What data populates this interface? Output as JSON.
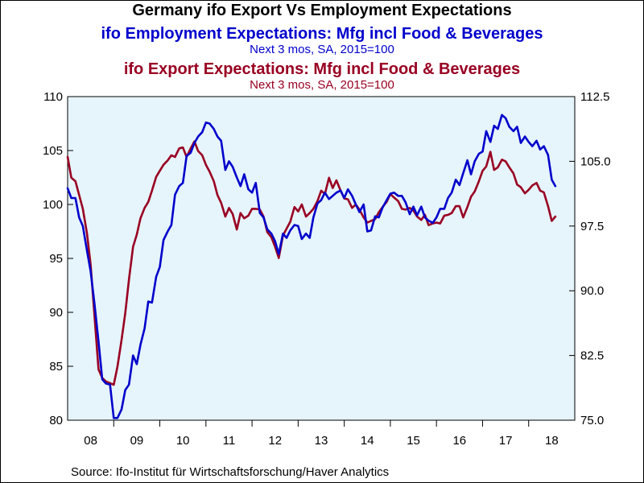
{
  "chart_data": {
    "type": "line",
    "title": "Germany ifo Export Vs Employment Expectations",
    "source": "Source:  Ifo-Institut für Wirtschaftsforschung/Haver Analytics",
    "x_start": 2008.0,
    "x_end": 2019.0,
    "xticks": [
      "08",
      "09",
      "10",
      "11",
      "12",
      "13",
      "14",
      "15",
      "16",
      "17",
      "18"
    ],
    "y_left": {
      "lim": [
        80,
        110
      ],
      "ticks": [
        "80",
        "85",
        "90",
        "95",
        "100",
        "105",
        "110"
      ]
    },
    "y_right": {
      "lim": [
        75.0,
        112.5
      ],
      "ticks": [
        "75.0",
        "82.5",
        "90.0",
        "97.5",
        "105.0",
        "112.5"
      ]
    },
    "series": [
      {
        "name": "ifo Employment Expectations: Mfg incl Food & Beverages",
        "subtitle": "Next 3 mos, SA, 2015=100",
        "axis": "left",
        "color": "#0000cc",
        "points": [
          [
            2008.0,
            101.5
          ],
          [
            2008.08,
            100.6
          ],
          [
            2008.17,
            100.6
          ],
          [
            2008.25,
            98.8
          ],
          [
            2008.33,
            98.0
          ],
          [
            2008.42,
            95.7
          ],
          [
            2008.5,
            93.8
          ],
          [
            2008.58,
            90.9
          ],
          [
            2008.67,
            87.3
          ],
          [
            2008.75,
            83.8
          ],
          [
            2008.83,
            83.4
          ],
          [
            2008.92,
            83.3
          ],
          [
            2009.0,
            80.2
          ],
          [
            2009.08,
            80.2
          ],
          [
            2009.17,
            81.0
          ],
          [
            2009.25,
            82.8
          ],
          [
            2009.33,
            83.3
          ],
          [
            2009.42,
            86.0
          ],
          [
            2009.5,
            85.2
          ],
          [
            2009.58,
            87.0
          ],
          [
            2009.67,
            88.5
          ],
          [
            2009.75,
            91.0
          ],
          [
            2009.83,
            90.9
          ],
          [
            2009.92,
            93.3
          ],
          [
            2010.0,
            94.2
          ],
          [
            2010.08,
            96.7
          ],
          [
            2010.17,
            97.5
          ],
          [
            2010.25,
            98.1
          ],
          [
            2010.33,
            100.9
          ],
          [
            2010.42,
            101.7
          ],
          [
            2010.5,
            102.0
          ],
          [
            2010.58,
            104.5
          ],
          [
            2010.67,
            104.8
          ],
          [
            2010.75,
            105.7
          ],
          [
            2010.83,
            106.3
          ],
          [
            2010.92,
            106.7
          ],
          [
            2011.0,
            107.6
          ],
          [
            2011.08,
            107.5
          ],
          [
            2011.17,
            107.0
          ],
          [
            2011.25,
            106.3
          ],
          [
            2011.33,
            105.9
          ],
          [
            2011.42,
            103.2
          ],
          [
            2011.5,
            104.0
          ],
          [
            2011.58,
            103.5
          ],
          [
            2011.67,
            102.5
          ],
          [
            2011.75,
            101.7
          ],
          [
            2011.83,
            102.8
          ],
          [
            2011.92,
            101.4
          ],
          [
            2012.0,
            101.1
          ],
          [
            2012.08,
            102.0
          ],
          [
            2012.17,
            99.2
          ],
          [
            2012.25,
            98.8
          ],
          [
            2012.33,
            97.7
          ],
          [
            2012.42,
            97.3
          ],
          [
            2012.5,
            96.6
          ],
          [
            2012.58,
            95.4
          ],
          [
            2012.67,
            97.3
          ],
          [
            2012.75,
            96.9
          ],
          [
            2012.83,
            97.6
          ],
          [
            2012.92,
            98.1
          ],
          [
            2013.0,
            98.0
          ],
          [
            2013.08,
            96.8
          ],
          [
            2013.17,
            97.3
          ],
          [
            2013.25,
            96.9
          ],
          [
            2013.33,
            98.8
          ],
          [
            2013.42,
            100.1
          ],
          [
            2013.5,
            100.4
          ],
          [
            2013.58,
            101.1
          ],
          [
            2013.67,
            100.5
          ],
          [
            2013.75,
            100.8
          ],
          [
            2013.83,
            101.1
          ],
          [
            2013.92,
            101.3
          ],
          [
            2014.0,
            100.6
          ],
          [
            2014.08,
            101.4
          ],
          [
            2014.17,
            100.8
          ],
          [
            2014.25,
            100.0
          ],
          [
            2014.33,
            99.3
          ],
          [
            2014.42,
            100.0
          ],
          [
            2014.5,
            97.5
          ],
          [
            2014.58,
            97.6
          ],
          [
            2014.67,
            98.9
          ],
          [
            2014.75,
            98.8
          ],
          [
            2014.83,
            99.7
          ],
          [
            2014.92,
            100.4
          ],
          [
            2015.0,
            101.0
          ],
          [
            2015.08,
            101.1
          ],
          [
            2015.17,
            100.8
          ],
          [
            2015.25,
            100.8
          ],
          [
            2015.33,
            100.2
          ],
          [
            2015.42,
            99.1
          ],
          [
            2015.5,
            99.8
          ],
          [
            2015.58,
            99.0
          ],
          [
            2015.67,
            99.8
          ],
          [
            2015.75,
            98.8
          ],
          [
            2015.83,
            98.5
          ],
          [
            2015.92,
            98.3
          ],
          [
            2016.0,
            98.8
          ],
          [
            2016.08,
            99.6
          ],
          [
            2016.17,
            99.6
          ],
          [
            2016.25,
            100.6
          ],
          [
            2016.33,
            101.1
          ],
          [
            2016.42,
            102.3
          ],
          [
            2016.5,
            101.8
          ],
          [
            2016.58,
            102.9
          ],
          [
            2016.67,
            104.1
          ],
          [
            2016.75,
            102.8
          ],
          [
            2016.83,
            104.0
          ],
          [
            2016.92,
            104.7
          ],
          [
            2017.0,
            104.9
          ],
          [
            2017.08,
            106.8
          ],
          [
            2017.17,
            105.8
          ],
          [
            2017.25,
            107.3
          ],
          [
            2017.33,
            107.0
          ],
          [
            2017.42,
            108.3
          ],
          [
            2017.5,
            108.0
          ],
          [
            2017.58,
            107.2
          ],
          [
            2017.67,
            106.8
          ],
          [
            2017.75,
            107.2
          ],
          [
            2017.83,
            105.7
          ],
          [
            2017.92,
            106.3
          ],
          [
            2018.0,
            105.8
          ],
          [
            2018.08,
            105.4
          ],
          [
            2018.17,
            105.9
          ],
          [
            2018.25,
            105.1
          ],
          [
            2018.33,
            105.4
          ],
          [
            2018.42,
            104.6
          ],
          [
            2018.5,
            102.3
          ],
          [
            2018.58,
            101.7
          ]
        ]
      },
      {
        "name": "ifo Export Expectations: Mfg incl Food & Beverages",
        "subtitle": "Next 3 mos, SA, 2015=100",
        "axis": "right",
        "color": "#990022",
        "points": [
          [
            2008.0,
            105.5
          ],
          [
            2008.08,
            103.1
          ],
          [
            2008.17,
            102.7
          ],
          [
            2008.25,
            101.1
          ],
          [
            2008.33,
            99.5
          ],
          [
            2008.42,
            96.6
          ],
          [
            2008.5,
            93.0
          ],
          [
            2008.58,
            87.3
          ],
          [
            2008.67,
            80.9
          ],
          [
            2008.75,
            79.9
          ],
          [
            2008.83,
            79.5
          ],
          [
            2008.92,
            79.3
          ],
          [
            2009.0,
            79.1
          ],
          [
            2009.08,
            81.2
          ],
          [
            2009.17,
            84.3
          ],
          [
            2009.25,
            87.4
          ],
          [
            2009.33,
            91.3
          ],
          [
            2009.42,
            95.1
          ],
          [
            2009.5,
            96.5
          ],
          [
            2009.58,
            98.4
          ],
          [
            2009.67,
            99.6
          ],
          [
            2009.75,
            100.3
          ],
          [
            2009.83,
            101.6
          ],
          [
            2009.92,
            103.2
          ],
          [
            2010.0,
            103.9
          ],
          [
            2010.08,
            104.6
          ],
          [
            2010.17,
            105.1
          ],
          [
            2010.25,
            105.7
          ],
          [
            2010.33,
            105.5
          ],
          [
            2010.42,
            106.5
          ],
          [
            2010.5,
            106.6
          ],
          [
            2010.58,
            105.5
          ],
          [
            2010.67,
            106.5
          ],
          [
            2010.75,
            107.3
          ],
          [
            2010.83,
            106.2
          ],
          [
            2010.92,
            105.7
          ],
          [
            2011.0,
            104.6
          ],
          [
            2011.08,
            103.8
          ],
          [
            2011.17,
            102.7
          ],
          [
            2011.25,
            101.1
          ],
          [
            2011.33,
            100.2
          ],
          [
            2011.42,
            98.6
          ],
          [
            2011.5,
            99.6
          ],
          [
            2011.58,
            98.9
          ],
          [
            2011.67,
            97.1
          ],
          [
            2011.75,
            99.0
          ],
          [
            2011.83,
            98.4
          ],
          [
            2011.92,
            98.7
          ],
          [
            2012.0,
            99.5
          ],
          [
            2012.08,
            99.5
          ],
          [
            2012.17,
            99.4
          ],
          [
            2012.25,
            98.6
          ],
          [
            2012.33,
            96.8
          ],
          [
            2012.42,
            96.2
          ],
          [
            2012.5,
            95.1
          ],
          [
            2012.58,
            93.8
          ],
          [
            2012.67,
            96.4
          ],
          [
            2012.75,
            97.2
          ],
          [
            2012.83,
            98.0
          ],
          [
            2012.92,
            99.7
          ],
          [
            2013.0,
            99.2
          ],
          [
            2013.08,
            100.0
          ],
          [
            2013.17,
            98.6
          ],
          [
            2013.25,
            99.0
          ],
          [
            2013.33,
            99.5
          ],
          [
            2013.42,
            100.4
          ],
          [
            2013.5,
            101.6
          ],
          [
            2013.58,
            101.2
          ],
          [
            2013.67,
            103.1
          ],
          [
            2013.75,
            101.9
          ],
          [
            2013.83,
            102.8
          ],
          [
            2013.92,
            101.6
          ],
          [
            2014.0,
            100.7
          ],
          [
            2014.08,
            100.6
          ],
          [
            2014.17,
            99.6
          ],
          [
            2014.25,
            100.0
          ],
          [
            2014.33,
            99.4
          ],
          [
            2014.42,
            98.5
          ],
          [
            2014.5,
            97.9
          ],
          [
            2014.58,
            98.1
          ],
          [
            2014.67,
            98.3
          ],
          [
            2014.75,
            99.1
          ],
          [
            2014.83,
            99.7
          ],
          [
            2014.92,
            100.3
          ],
          [
            2015.0,
            101.2
          ],
          [
            2015.08,
            100.8
          ],
          [
            2015.17,
            100.4
          ],
          [
            2015.25,
            99.5
          ],
          [
            2015.33,
            99.4
          ],
          [
            2015.42,
            99.6
          ],
          [
            2015.5,
            99.3
          ],
          [
            2015.58,
            98.6
          ],
          [
            2015.67,
            98.2
          ],
          [
            2015.75,
            98.8
          ],
          [
            2015.83,
            97.6
          ],
          [
            2015.92,
            97.8
          ],
          [
            2016.0,
            97.9
          ],
          [
            2016.08,
            97.8
          ],
          [
            2016.17,
            98.7
          ],
          [
            2016.25,
            98.8
          ],
          [
            2016.33,
            99.0
          ],
          [
            2016.42,
            99.8
          ],
          [
            2016.5,
            99.8
          ],
          [
            2016.58,
            98.5
          ],
          [
            2016.67,
            99.7
          ],
          [
            2016.75,
            100.9
          ],
          [
            2016.83,
            101.5
          ],
          [
            2016.92,
            102.7
          ],
          [
            2017.0,
            103.9
          ],
          [
            2017.08,
            104.4
          ],
          [
            2017.17,
            106.1
          ],
          [
            2017.25,
            104.0
          ],
          [
            2017.33,
            104.3
          ],
          [
            2017.42,
            105.2
          ],
          [
            2017.5,
            105.0
          ],
          [
            2017.58,
            104.3
          ],
          [
            2017.67,
            103.6
          ],
          [
            2017.75,
            102.3
          ],
          [
            2017.83,
            102.0
          ],
          [
            2017.92,
            101.3
          ],
          [
            2018.0,
            101.7
          ],
          [
            2018.08,
            102.2
          ],
          [
            2018.17,
            102.5
          ],
          [
            2018.25,
            101.6
          ],
          [
            2018.33,
            101.4
          ],
          [
            2018.42,
            99.8
          ],
          [
            2018.5,
            98.1
          ],
          [
            2018.58,
            98.6
          ]
        ]
      }
    ]
  }
}
